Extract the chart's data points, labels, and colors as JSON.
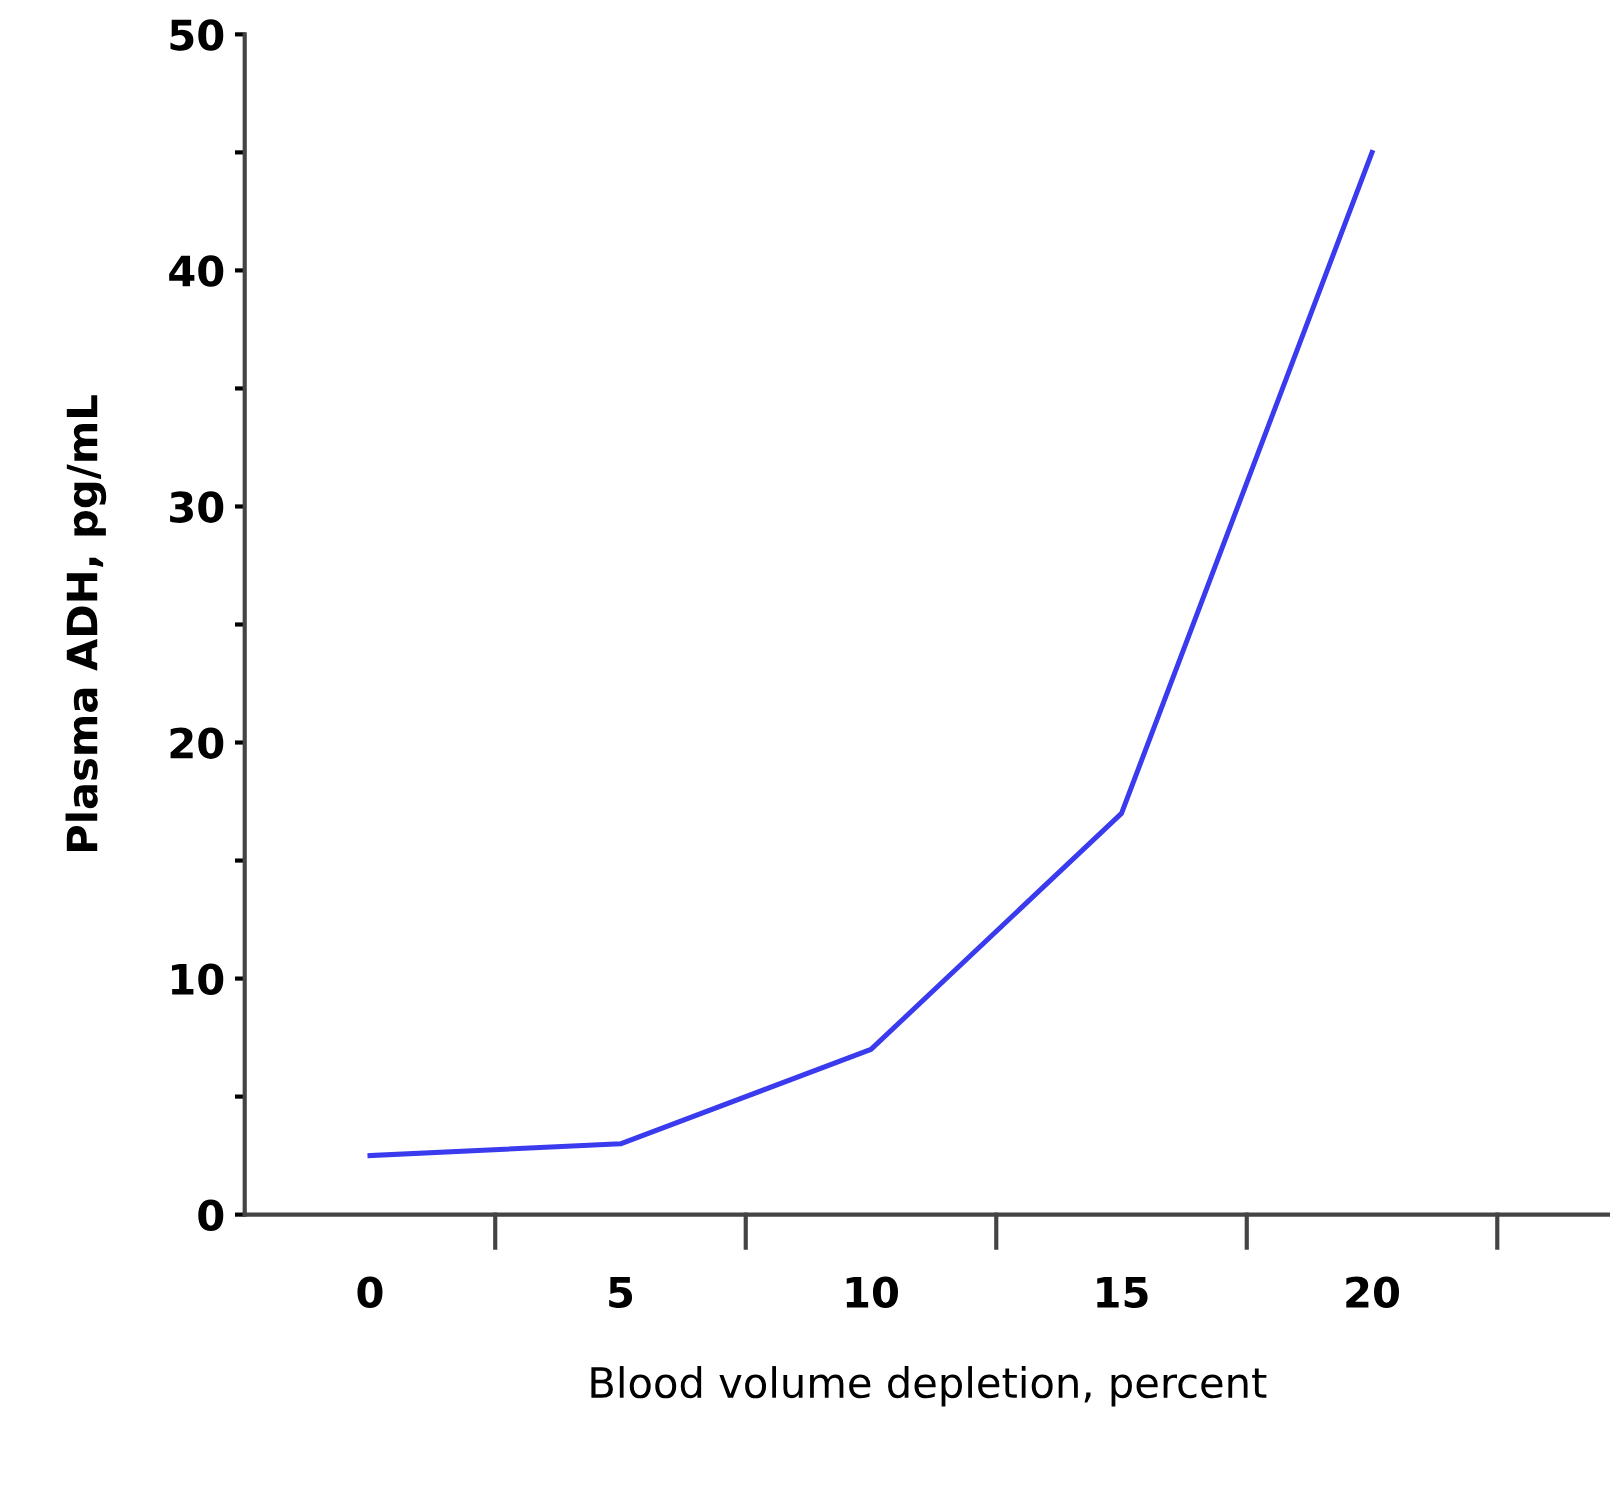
{
  "chart_data": {
    "type": "line",
    "xlabel": "Blood volume depletion, percent",
    "ylabel": "Plasma ADH, pg/mL",
    "categories": [
      "0",
      "5",
      "10",
      "15",
      "20"
    ],
    "series": [
      {
        "color": "#3a3aee",
        "values": [
          2.5,
          3,
          7,
          17,
          45
        ]
      }
    ],
    "ylim": [
      0,
      50
    ],
    "yticks": [
      0,
      {
        "value": 5,
        "label": null
      },
      10,
      {
        "value": 15,
        "label": null
      },
      20,
      {
        "value": 25,
        "label": null
      },
      30,
      {
        "value": 35,
        "label": null
      },
      40,
      {
        "value": 45,
        "label": null
      },
      50
    ],
    "grid": false,
    "legend": false,
    "marker": "none",
    "line_style": "solid"
  }
}
